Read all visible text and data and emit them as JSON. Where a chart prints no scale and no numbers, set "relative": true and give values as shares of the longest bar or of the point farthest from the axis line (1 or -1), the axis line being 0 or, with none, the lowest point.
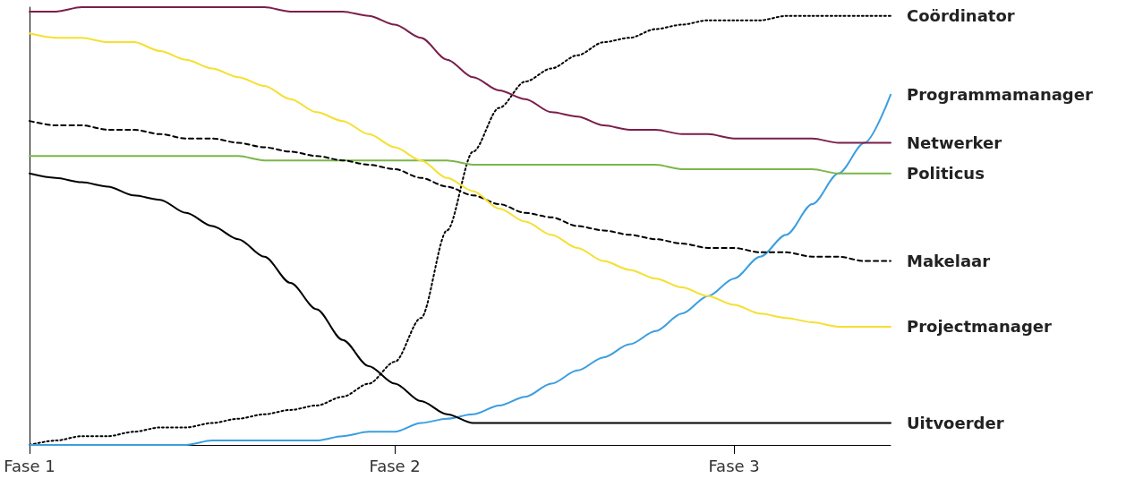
{
  "chart_data": {
    "type": "line",
    "relative": true,
    "marker": "none",
    "grid": false,
    "legend": false,
    "categories": [
      "Fase 1",
      null,
      null,
      null,
      null,
      null,
      null,
      null,
      null,
      null,
      null,
      null,
      null,
      null,
      "Fase 2",
      null,
      null,
      null,
      null,
      null,
      null,
      null,
      null,
      null,
      null,
      null,
      null,
      "Fase 3",
      null,
      null,
      null,
      null,
      null,
      null
    ],
    "series": [
      {
        "name": "Coördinator",
        "color": "#000000",
        "line_style": "dotted",
        "values": [
          0,
          0.01,
          0.02,
          0.02,
          0.03,
          0.04,
          0.04,
          0.05,
          0.06,
          0.07,
          0.08,
          0.09,
          0.11,
          0.14,
          0.19,
          0.29,
          0.49,
          0.67,
          0.77,
          0.83,
          0.86,
          0.89,
          0.92,
          0.93,
          0.95,
          0.96,
          0.97,
          0.97,
          0.97,
          0.98,
          0.98,
          0.98,
          0.98,
          0.98
        ]
      },
      {
        "name": "Programmamanager",
        "color": "#3b9ee0",
        "line_style": "solid",
        "values": [
          0,
          0,
          0,
          0,
          0,
          0,
          0,
          0.01,
          0.01,
          0.01,
          0.01,
          0.01,
          0.02,
          0.03,
          0.03,
          0.05,
          0.06,
          0.07,
          0.09,
          0.11,
          0.14,
          0.17,
          0.2,
          0.23,
          0.26,
          0.3,
          0.34,
          0.38,
          0.43,
          0.48,
          0.55,
          0.62,
          0.69,
          0.8
        ]
      },
      {
        "name": "Netwerker",
        "color": "#7b1e4b",
        "line_style": "solid",
        "values": [
          0.99,
          0.99,
          1,
          1,
          1,
          1,
          1,
          1,
          1,
          1,
          0.99,
          0.99,
          0.99,
          0.98,
          0.96,
          0.93,
          0.88,
          0.84,
          0.81,
          0.79,
          0.76,
          0.75,
          0.73,
          0.72,
          0.72,
          0.71,
          0.71,
          0.7,
          0.7,
          0.7,
          0.7,
          0.69,
          0.69,
          0.69
        ]
      },
      {
        "name": "Politicus",
        "color": "#7ab648",
        "line_style": "solid",
        "values": [
          0.66,
          0.66,
          0.66,
          0.66,
          0.66,
          0.66,
          0.66,
          0.66,
          0.66,
          0.65,
          0.65,
          0.65,
          0.65,
          0.65,
          0.65,
          0.65,
          0.65,
          0.64,
          0.64,
          0.64,
          0.64,
          0.64,
          0.64,
          0.64,
          0.64,
          0.63,
          0.63,
          0.63,
          0.63,
          0.63,
          0.63,
          0.62,
          0.62,
          0.62
        ]
      },
      {
        "name": "Makelaar",
        "color": "#000000",
        "line_style": "dashed",
        "values": [
          0.74,
          0.73,
          0.73,
          0.72,
          0.72,
          0.71,
          0.7,
          0.7,
          0.69,
          0.68,
          0.67,
          0.66,
          0.65,
          0.64,
          0.63,
          0.61,
          0.59,
          0.57,
          0.55,
          0.53,
          0.52,
          0.5,
          0.49,
          0.48,
          0.47,
          0.46,
          0.45,
          0.45,
          0.44,
          0.44,
          0.43,
          0.43,
          0.42,
          0.42
        ]
      },
      {
        "name": "Projectmanager",
        "color": "#f5e030",
        "line_style": "solid",
        "values": [
          0.94,
          0.93,
          0.93,
          0.92,
          0.92,
          0.9,
          0.88,
          0.86,
          0.84,
          0.82,
          0.79,
          0.76,
          0.74,
          0.71,
          0.68,
          0.65,
          0.61,
          0.58,
          0.54,
          0.51,
          0.48,
          0.45,
          0.42,
          0.4,
          0.38,
          0.36,
          0.34,
          0.32,
          0.3,
          0.29,
          0.28,
          0.27,
          0.27,
          0.27
        ]
      },
      {
        "name": "Uitvoerder",
        "color": "#000000",
        "line_style": "solid",
        "values": [
          0.62,
          0.61,
          0.6,
          0.59,
          0.57,
          0.56,
          0.53,
          0.5,
          0.47,
          0.43,
          0.37,
          0.31,
          0.24,
          0.18,
          0.14,
          0.1,
          0.07,
          0.05,
          0.05,
          0.05,
          0.05,
          0.05,
          0.05,
          0.05,
          0.05,
          0.05,
          0.05,
          0.05,
          0.05,
          0.05,
          0.05,
          0.05,
          0.05,
          0.05
        ]
      }
    ]
  }
}
